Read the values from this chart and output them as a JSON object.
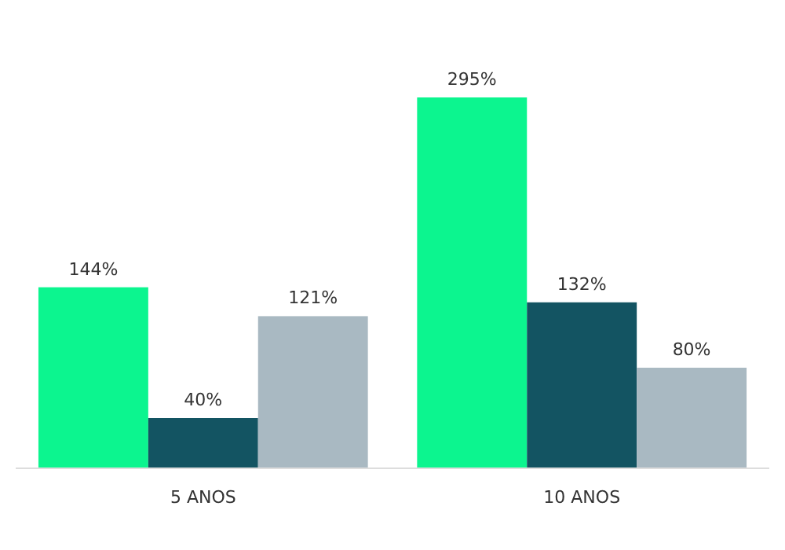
{
  "chart_data": {
    "type": "bar",
    "categories": [
      "5 ANOS",
      "10 ANOS"
    ],
    "series": [
      {
        "color": "#0cf58f",
        "values": [
          144,
          295
        ],
        "value_labels": [
          "144%",
          "295%"
        ]
      },
      {
        "color": "#135462",
        "values": [
          40,
          132
        ],
        "value_labels": [
          "40%",
          "132%"
        ]
      },
      {
        "color": "#a9b9c2",
        "values": [
          121,
          80
        ],
        "value_labels": [
          "121%",
          "80%"
        ]
      }
    ],
    "tick_labels": "x"
  }
}
